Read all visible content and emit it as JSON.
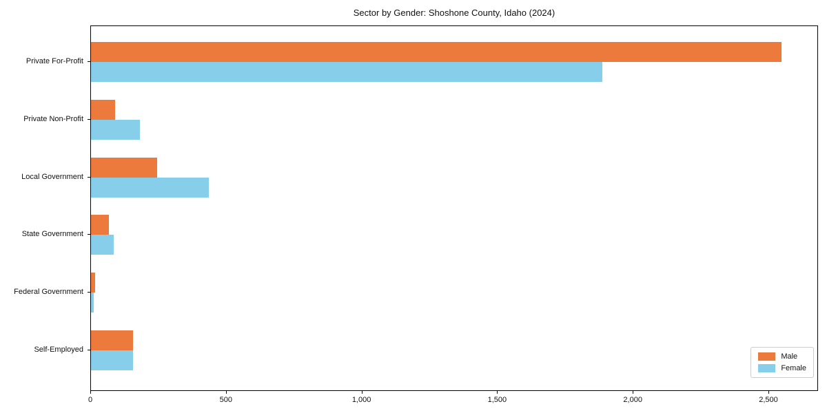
{
  "chart_data": {
    "type": "bar",
    "orientation": "horizontal",
    "title": "Sector by Gender: Shoshone County, Idaho (2024)",
    "categories": [
      "Private For-Profit",
      "Private Non-Profit",
      "Local Government",
      "State Government",
      "Federal Government",
      "Self-Employed"
    ],
    "series": [
      {
        "name": "Male",
        "color": "#eb7a3c",
        "values": [
          2550,
          90,
          245,
          65,
          15,
          155
        ]
      },
      {
        "name": "Female",
        "color": "#87ceeb",
        "values": [
          1890,
          180,
          435,
          85,
          10,
          155
        ]
      }
    ],
    "xlabel": "",
    "ylabel": "",
    "xlim": [
      0,
      2683
    ],
    "xticks": [
      {
        "value": 0,
        "label": "0"
      },
      {
        "value": 500,
        "label": "500"
      },
      {
        "value": 1000,
        "label": "1,000"
      },
      {
        "value": 1500,
        "label": "1,500"
      },
      {
        "value": 2000,
        "label": "2,000"
      },
      {
        "value": 2500,
        "label": "2,500"
      }
    ],
    "grid": false,
    "legend_position": "lower right"
  }
}
